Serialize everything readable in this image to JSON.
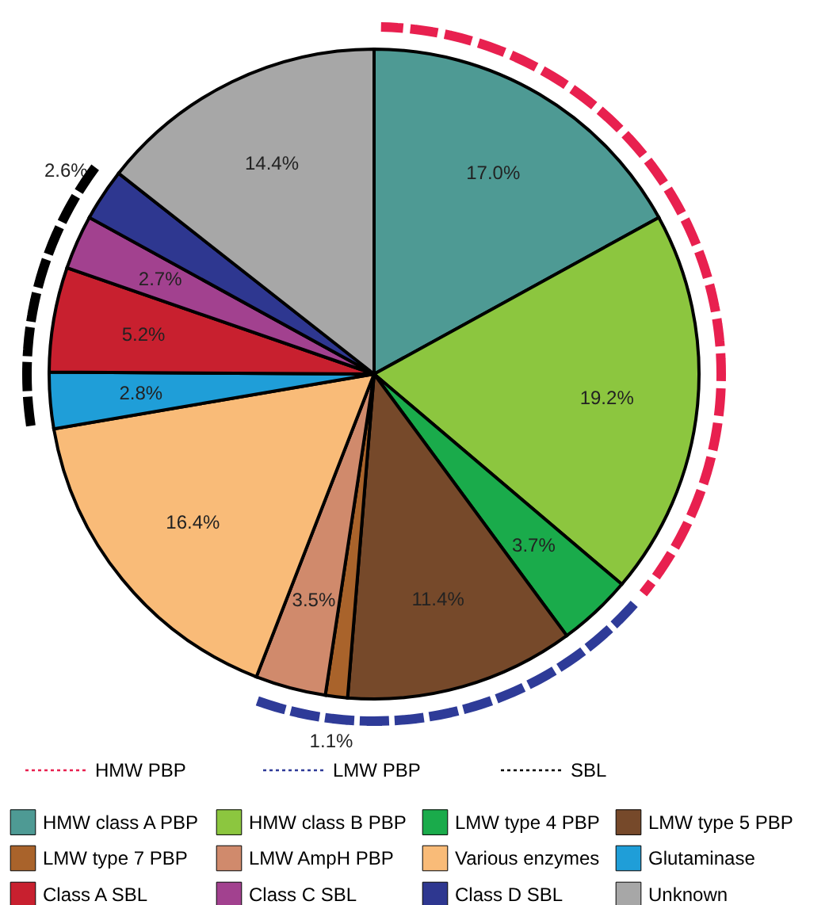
{
  "chart_data": {
    "type": "pie",
    "categories": [
      "HMW class A PBP",
      "HMW class B PBP",
      "LMW type 4 PBP",
      "LMW type 5 PBP",
      "LMW type 7 PBP",
      "LMW AmpH PBP",
      "Various enzymes",
      "Glutaminase",
      "Class A SBL",
      "Class C SBL",
      "Class D SBL",
      "Unknown"
    ],
    "values": [
      17.0,
      19.2,
      3.7,
      11.4,
      1.1,
      3.5,
      16.4,
      2.8,
      5.2,
      2.7,
      2.6,
      14.4
    ],
    "value_labels": [
      "17.0%",
      "19.2%",
      "3.7%",
      "11.4%",
      "1.1%",
      "3.5%",
      "16.4%",
      "2.8%",
      "5.2%",
      "2.7%",
      "2.6%",
      "14.4%"
    ],
    "colors": [
      "#4e9a94",
      "#8cc63f",
      "#1aab4b",
      "#76492a",
      "#a9632b",
      "#d08a6c",
      "#f9bb78",
      "#1f9ed8",
      "#c8202f",
      "#a2418f",
      "#2e3790",
      "#a7a7a7"
    ],
    "legend": "bottom",
    "annotations": [
      "HMW PBP",
      "LMW PBP",
      "SBL"
    ]
  }
}
